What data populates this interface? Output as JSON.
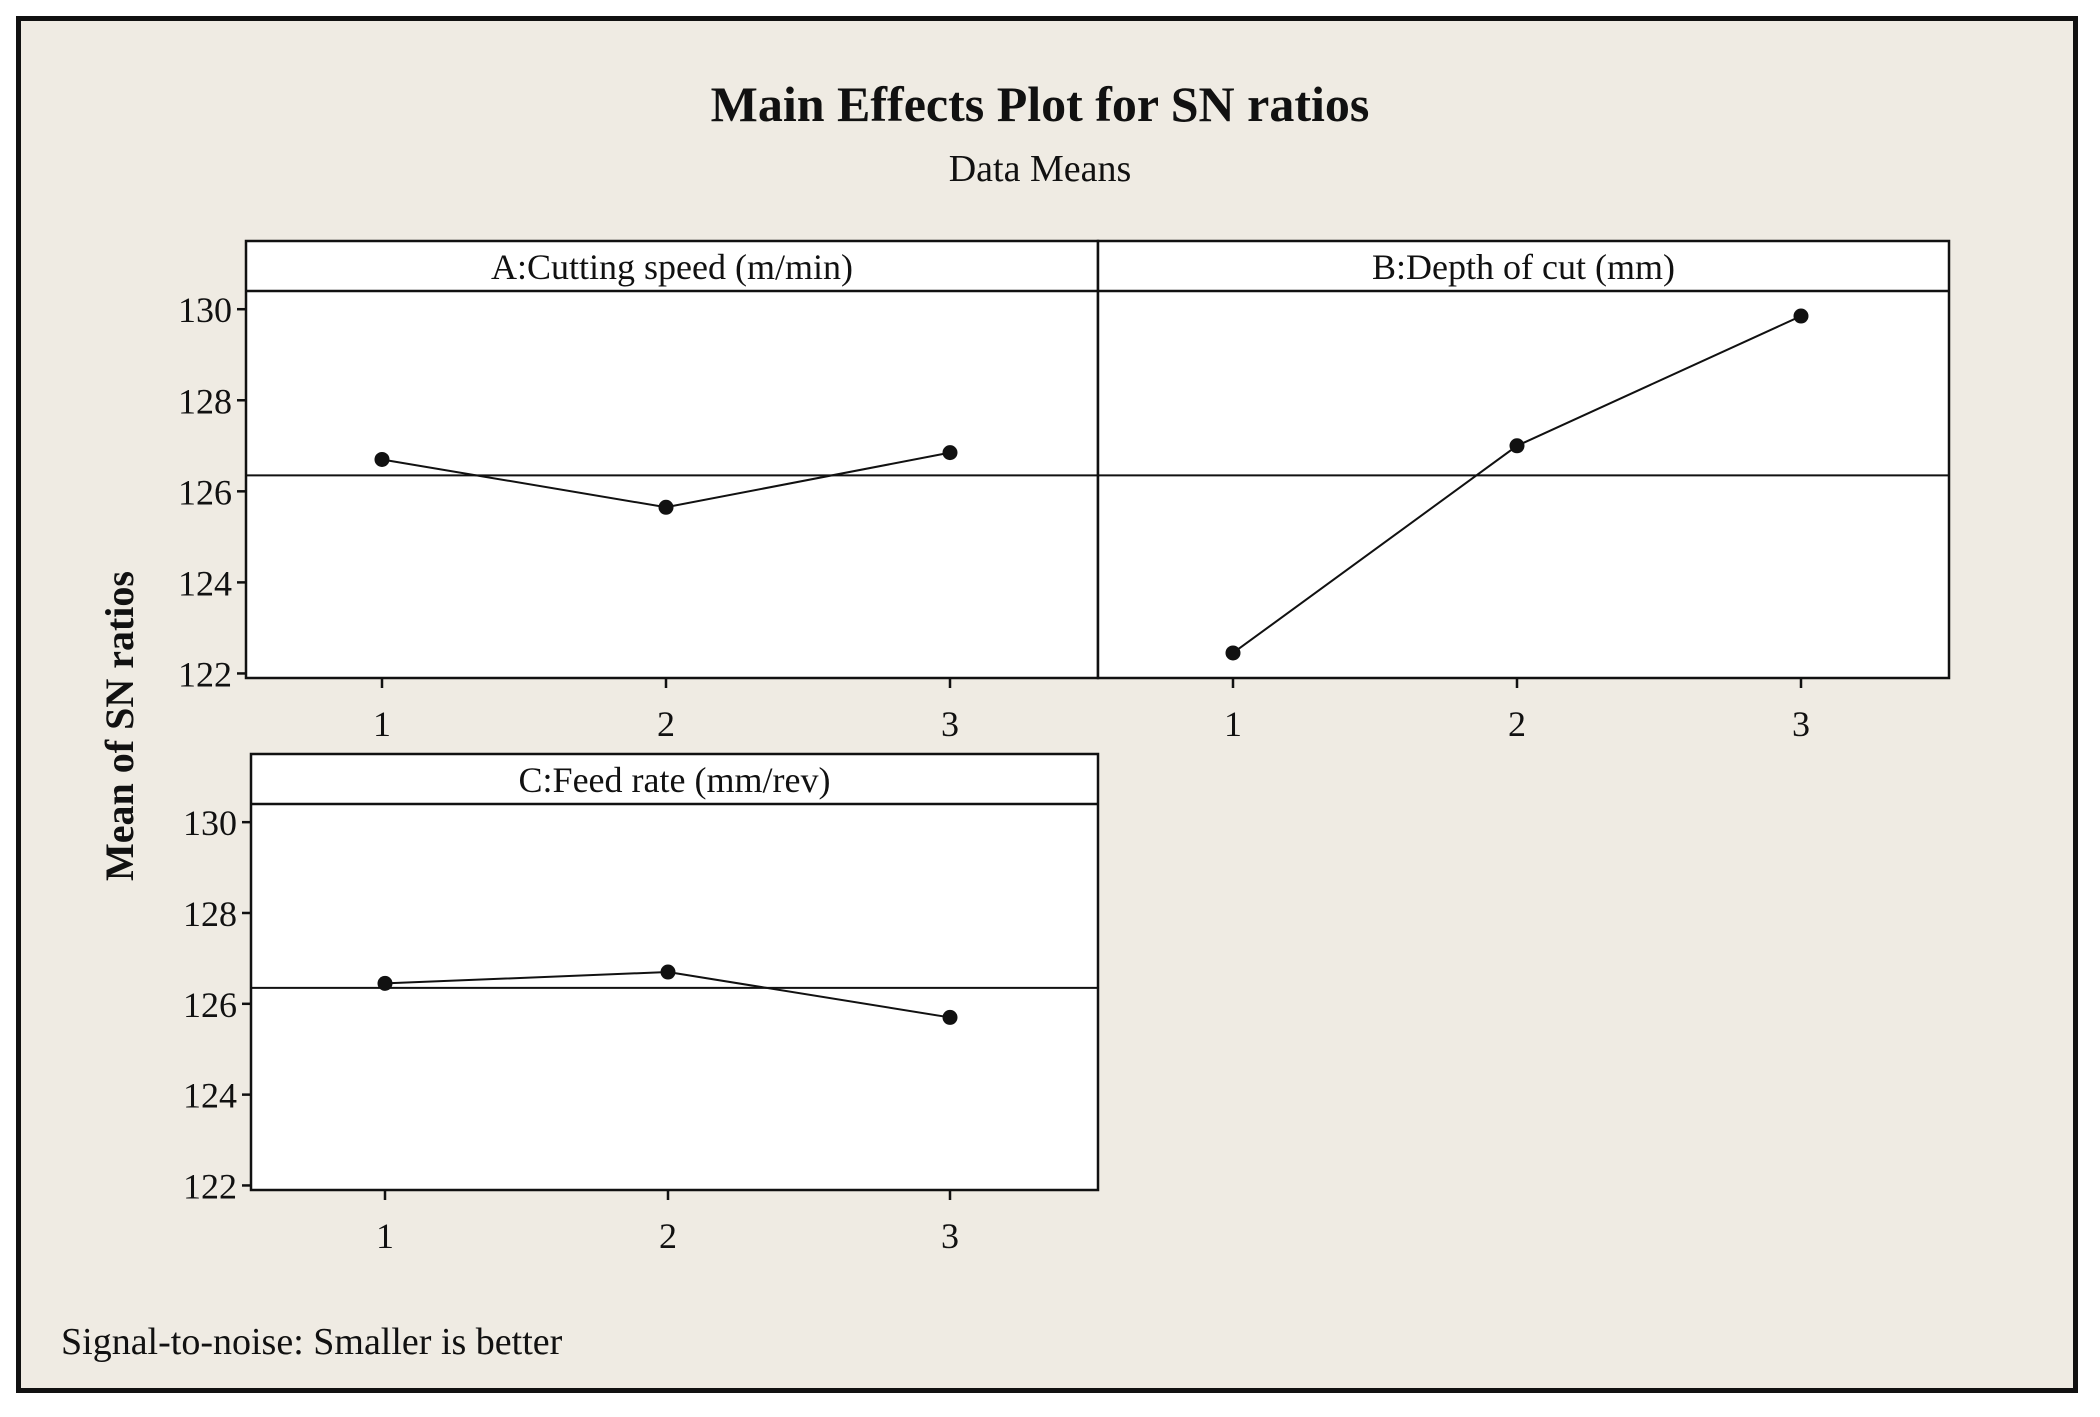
{
  "colors": {
    "background": "#efebe3",
    "panel": "#ffffff",
    "line": "#111111"
  },
  "chart_data": {
    "type": "line",
    "title": "Main Effects Plot for SN ratios",
    "subtitle": "Data Means",
    "ylabel": "Mean of SN ratios",
    "footnote": "Signal-to-noise: Smaller is better",
    "ylim": [
      121.9,
      130.4
    ],
    "yticks": [
      122,
      124,
      126,
      128,
      130
    ],
    "overall_mean": 126.35,
    "panels": [
      {
        "title": "A:Cutting speed (m/min)",
        "levels": [
          "1",
          "2",
          "3"
        ],
        "values": [
          126.7,
          125.65,
          126.85
        ]
      },
      {
        "title": "B:Depth of cut (mm)",
        "levels": [
          "1",
          "2",
          "3"
        ],
        "values": [
          122.45,
          127.0,
          129.85
        ]
      },
      {
        "title": "C:Feed rate (mm/rev)",
        "levels": [
          "1",
          "2",
          "3"
        ],
        "values": [
          126.45,
          126.7,
          125.7
        ]
      }
    ]
  }
}
